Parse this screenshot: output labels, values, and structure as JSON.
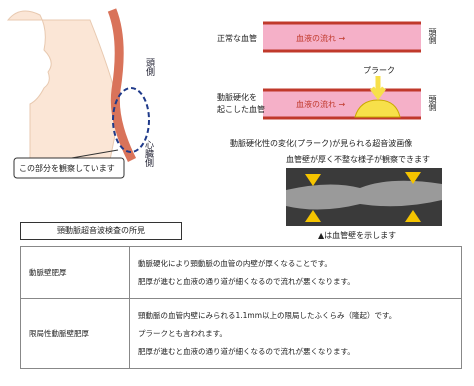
{
  "figure": {
    "head_side": "頭側",
    "heart_side": "心臓側",
    "callout": "この部分を観察しています"
  },
  "vessels": {
    "normal": {
      "label": "正常な血管",
      "flow": "血液の流れ",
      "side": "頭側"
    },
    "sclerotic": {
      "label_lines": [
        "動脈硬化を",
        "起こした血管"
      ],
      "plaque": "プラーク",
      "flow": "血液の流れ",
      "side": "頭側"
    }
  },
  "ultrasound": {
    "title": "動脈硬化性の変化(プラーク)が見られる超音波画像",
    "caption": "血管壁が厚く不整な様子が観察できます",
    "legend": "▲は血管壁を示します"
  },
  "table": {
    "title": "頸動脈超音波検査の所見",
    "rows": [
      {
        "term": "動脈壁肥厚",
        "lines": [
          "動脈硬化により頸動脈の血管の内壁が厚くなることです。",
          "肥厚が進むと血液の通り道が細くなるので流れが悪くなります。"
        ]
      },
      {
        "term": "限局性動脈壁肥厚",
        "lines": [
          "頸動脈の血管内壁にみられる1.1mm以上の限局したふくらみ（隆起）です。",
          "プラークとも言われます。",
          "肥厚が進むと血液の通り道が細くなるので流れが悪くなります。"
        ]
      }
    ]
  }
}
